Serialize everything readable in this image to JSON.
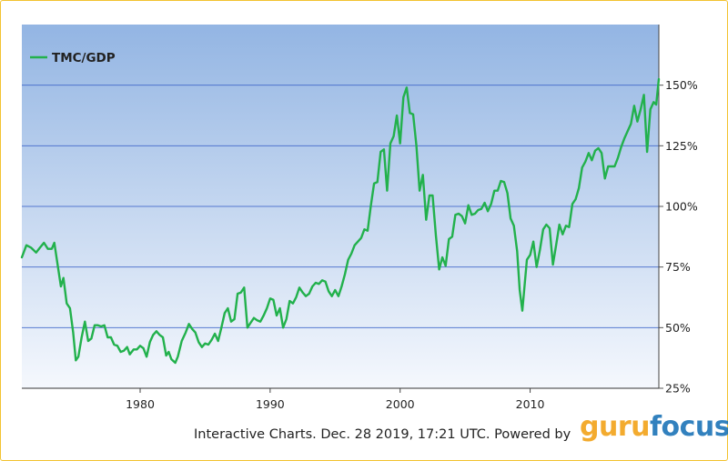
{
  "chart_data": {
    "type": "line",
    "title": "",
    "xlabel": "",
    "ylabel": "",
    "legend": {
      "position": "top-left",
      "entries": [
        "TMC/GDP"
      ]
    },
    "grid": true,
    "xlim": [
      1970.9,
      2019.9
    ],
    "ylim": [
      25,
      175
    ],
    "y_unit": "%",
    "x_ticks": [
      1980,
      1990,
      2000,
      2010
    ],
    "x_tick_labels": [
      "1980",
      "1990",
      "2000",
      "2010"
    ],
    "y_ticks": [
      25,
      50,
      75,
      100,
      125,
      150
    ],
    "y_tick_labels": [
      "25%",
      "50%",
      "75%",
      "100%",
      "125%",
      "150%"
    ],
    "series": [
      {
        "name": "TMC/GDP",
        "color": "#22b14c",
        "points": [
          [
            1970.9,
            79
          ],
          [
            1971.25,
            84
          ],
          [
            1971.6,
            83
          ],
          [
            1972.0,
            81
          ],
          [
            1972.3,
            83
          ],
          [
            1972.6,
            85
          ],
          [
            1972.9,
            82.5
          ],
          [
            1973.2,
            82.5
          ],
          [
            1973.4,
            85
          ],
          [
            1973.9,
            67
          ],
          [
            1974.1,
            70.5
          ],
          [
            1974.35,
            60
          ],
          [
            1974.6,
            58
          ],
          [
            1974.85,
            48
          ],
          [
            1975.05,
            36.5
          ],
          [
            1975.25,
            38
          ],
          [
            1975.5,
            46
          ],
          [
            1975.75,
            52.5
          ],
          [
            1976.0,
            44.5
          ],
          [
            1976.25,
            45.5
          ],
          [
            1976.5,
            51
          ],
          [
            1976.75,
            51
          ],
          [
            1977.0,
            50.5
          ],
          [
            1977.25,
            51
          ],
          [
            1977.5,
            46
          ],
          [
            1977.75,
            46
          ],
          [
            1978.0,
            43
          ],
          [
            1978.25,
            42.5
          ],
          [
            1978.5,
            40
          ],
          [
            1978.75,
            40.5
          ],
          [
            1979.0,
            42
          ],
          [
            1979.2,
            39
          ],
          [
            1979.5,
            41
          ],
          [
            1979.75,
            41
          ],
          [
            1980.0,
            42.5
          ],
          [
            1980.25,
            41.5
          ],
          [
            1980.5,
            38
          ],
          [
            1980.75,
            44
          ],
          [
            1981.0,
            47
          ],
          [
            1981.25,
            48.5
          ],
          [
            1981.5,
            47
          ],
          [
            1981.75,
            46
          ],
          [
            1982.0,
            38.5
          ],
          [
            1982.2,
            40
          ],
          [
            1982.4,
            37
          ],
          [
            1982.7,
            35.5
          ],
          [
            1982.9,
            38
          ],
          [
            1983.2,
            44.5
          ],
          [
            1983.5,
            48
          ],
          [
            1983.75,
            51.5
          ],
          [
            1984.0,
            49.5
          ],
          [
            1984.25,
            48
          ],
          [
            1984.5,
            44
          ],
          [
            1984.75,
            42
          ],
          [
            1985.0,
            43.5
          ],
          [
            1985.25,
            43
          ],
          [
            1985.5,
            45
          ],
          [
            1985.75,
            47.5
          ],
          [
            1986.0,
            44.5
          ],
          [
            1986.25,
            50
          ],
          [
            1986.5,
            56
          ],
          [
            1986.75,
            58
          ],
          [
            1987.0,
            52.5
          ],
          [
            1987.25,
            53.5
          ],
          [
            1987.5,
            64
          ],
          [
            1987.75,
            64.5
          ],
          [
            1988.0,
            66.5
          ],
          [
            1988.25,
            50
          ],
          [
            1988.5,
            52
          ],
          [
            1988.75,
            54
          ],
          [
            1989.0,
            53
          ],
          [
            1989.25,
            52.5
          ],
          [
            1989.5,
            55
          ],
          [
            1989.75,
            58
          ],
          [
            1990.0,
            62
          ],
          [
            1990.25,
            61.5
          ],
          [
            1990.5,
            55
          ],
          [
            1990.75,
            58
          ],
          [
            1991.0,
            50
          ],
          [
            1991.25,
            53.5
          ],
          [
            1991.5,
            61
          ],
          [
            1991.75,
            60
          ],
          [
            1992.0,
            62.5
          ],
          [
            1992.25,
            66.5
          ],
          [
            1992.5,
            64.5
          ],
          [
            1992.75,
            63
          ],
          [
            1993.0,
            64
          ],
          [
            1993.25,
            67
          ],
          [
            1993.5,
            68.5
          ],
          [
            1993.75,
            68
          ],
          [
            1994.0,
            69.5
          ],
          [
            1994.25,
            69
          ],
          [
            1994.5,
            65
          ],
          [
            1994.75,
            63
          ],
          [
            1995.0,
            65.5
          ],
          [
            1995.25,
            63
          ],
          [
            1995.5,
            67
          ],
          [
            1995.75,
            72
          ],
          [
            1996.0,
            78
          ],
          [
            1996.25,
            80.5
          ],
          [
            1996.5,
            84
          ],
          [
            1996.75,
            85.5
          ],
          [
            1997.0,
            87
          ],
          [
            1997.25,
            90.5
          ],
          [
            1997.5,
            90
          ],
          [
            1997.75,
            100.5
          ],
          [
            1998.0,
            109.5
          ],
          [
            1998.25,
            110
          ],
          [
            1998.5,
            122.5
          ],
          [
            1998.75,
            123.5
          ],
          [
            1999.0,
            106.5
          ],
          [
            1999.25,
            126
          ],
          [
            1999.5,
            129
          ],
          [
            1999.75,
            137.5
          ],
          [
            2000.0,
            126
          ],
          [
            2000.25,
            145
          ],
          [
            2000.5,
            149
          ],
          [
            2000.75,
            138.5
          ],
          [
            2001.0,
            138
          ],
          [
            2001.25,
            125
          ],
          [
            2001.5,
            106.5
          ],
          [
            2001.75,
            113
          ],
          [
            2002.0,
            94.5
          ],
          [
            2002.25,
            104.5
          ],
          [
            2002.5,
            104.5
          ],
          [
            2002.75,
            88
          ],
          [
            2003.0,
            74
          ],
          [
            2003.25,
            79
          ],
          [
            2003.5,
            75.5
          ],
          [
            2003.75,
            86.5
          ],
          [
            2004.0,
            87.5
          ],
          [
            2004.25,
            96.5
          ],
          [
            2004.5,
            97
          ],
          [
            2004.75,
            96
          ],
          [
            2005.0,
            93
          ],
          [
            2005.25,
            100.5
          ],
          [
            2005.5,
            96.5
          ],
          [
            2005.75,
            97
          ],
          [
            2006.0,
            98.5
          ],
          [
            2006.25,
            99
          ],
          [
            2006.5,
            101.5
          ],
          [
            2006.75,
            98
          ],
          [
            2007.0,
            101
          ],
          [
            2007.25,
            106.5
          ],
          [
            2007.5,
            106.5
          ],
          [
            2007.75,
            110.5
          ],
          [
            2008.0,
            110
          ],
          [
            2008.25,
            105.5
          ],
          [
            2008.5,
            95
          ],
          [
            2008.75,
            92
          ],
          [
            2009.0,
            81.5
          ],
          [
            2009.2,
            65.5
          ],
          [
            2009.4,
            57
          ],
          [
            2009.75,
            78
          ],
          [
            2010.0,
            80
          ],
          [
            2010.25,
            85.5
          ],
          [
            2010.5,
            75
          ],
          [
            2010.75,
            82
          ],
          [
            2011.0,
            90.5
          ],
          [
            2011.25,
            92.5
          ],
          [
            2011.5,
            91
          ],
          [
            2011.75,
            76
          ],
          [
            2012.0,
            84
          ],
          [
            2012.25,
            92.5
          ],
          [
            2012.5,
            88.5
          ],
          [
            2012.75,
            92
          ],
          [
            2013.0,
            91.5
          ],
          [
            2013.25,
            101
          ],
          [
            2013.5,
            103
          ],
          [
            2013.75,
            107.5
          ],
          [
            2014.0,
            116
          ],
          [
            2014.25,
            118.5
          ],
          [
            2014.5,
            122
          ],
          [
            2014.75,
            119
          ],
          [
            2015.0,
            123
          ],
          [
            2015.25,
            124
          ],
          [
            2015.5,
            122
          ],
          [
            2015.75,
            111.5
          ],
          [
            2016.0,
            116.5
          ],
          [
            2016.25,
            116.5
          ],
          [
            2016.5,
            116.5
          ],
          [
            2016.75,
            120
          ],
          [
            2017.0,
            124.5
          ],
          [
            2017.25,
            128
          ],
          [
            2017.5,
            131
          ],
          [
            2017.75,
            134
          ],
          [
            2018.0,
            141.5
          ],
          [
            2018.25,
            135
          ],
          [
            2018.5,
            140
          ],
          [
            2018.75,
            146
          ],
          [
            2019.0,
            122.5
          ],
          [
            2019.25,
            140
          ],
          [
            2019.5,
            143
          ],
          [
            2019.7,
            142
          ],
          [
            2019.9,
            152.5
          ]
        ]
      }
    ]
  },
  "background": {
    "top_color": "#93b5e3",
    "bottom_color": "#f5f8fd",
    "grid_color": "#3f66c9",
    "border_color": "#f2c230"
  },
  "footer": {
    "text": "Interactive Charts. Dec. 28 2019, 17:21 UTC. Powered by"
  },
  "brand": {
    "guru": "guru",
    "focus": "focus",
    "guru_color": "#f2a319",
    "focus_color": "#1c74b8"
  }
}
